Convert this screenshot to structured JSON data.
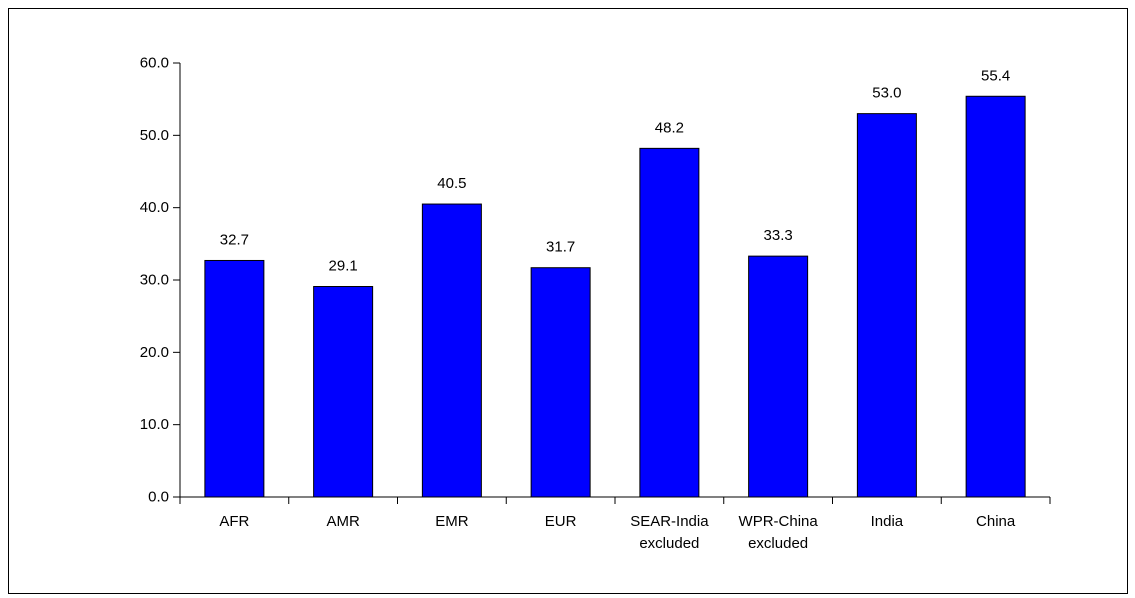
{
  "chart_data": {
    "type": "bar",
    "title": "",
    "xlabel": "",
    "ylabel": "",
    "categories": [
      "AFR",
      "AMR",
      "EMR",
      "EUR",
      "SEAR-India excluded",
      "WPR-China excluded",
      "India",
      "China"
    ],
    "category_label_lines": [
      [
        "AFR"
      ],
      [
        "AMR"
      ],
      [
        "EMR"
      ],
      [
        "EUR"
      ],
      [
        "SEAR-India",
        "excluded"
      ],
      [
        "WPR-China",
        "excluded"
      ],
      [
        "India"
      ],
      [
        "China"
      ]
    ],
    "values": [
      32.7,
      29.1,
      40.5,
      31.7,
      48.2,
      33.3,
      53.0,
      55.4
    ],
    "value_labels": [
      "32.7",
      "29.1",
      "40.5",
      "31.7",
      "48.2",
      "33.3",
      "53.0",
      "55.4"
    ],
    "ylim": [
      0,
      60
    ],
    "y_ticks": [
      0,
      10,
      20,
      30,
      40,
      50,
      60
    ],
    "y_tick_labels": [
      "0.0",
      "10.0",
      "20.0",
      "30.0",
      "40.0",
      "50.0",
      "60.0"
    ],
    "grid": false,
    "legend": "none",
    "bar_color": "#0000ff",
    "bar_edge_color": "#000000",
    "axis_color": "#000000"
  }
}
